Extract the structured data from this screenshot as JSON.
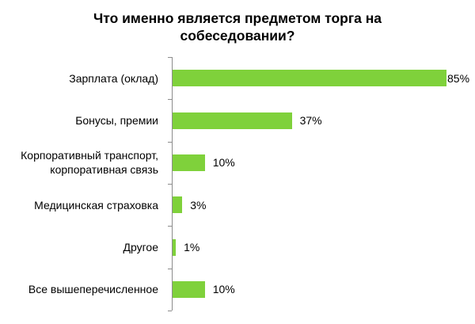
{
  "chart_data": {
    "type": "bar",
    "orientation": "horizontal",
    "title": "Что именно является предметом торга на собеседовании?",
    "title_lines": [
      "Что именно является предметом торга на",
      "собеседовании?"
    ],
    "categories": [
      "Зарплата (оклад)",
      "Бонусы, премии",
      "Корпоративный транспорт, корпоративная связь",
      "Медицинская страховка",
      "Другое",
      "Все вышеперечисленное"
    ],
    "category_lines": [
      [
        "Зарплата (оклад)"
      ],
      [
        "Бонусы, премии"
      ],
      [
        "Корпоративный транспорт,",
        "корпоративная связь"
      ],
      [
        "Медицинская страховка"
      ],
      [
        "Другое"
      ],
      [
        "Все вышеперечисленное"
      ]
    ],
    "values": [
      85,
      37,
      10,
      3,
      1,
      10
    ],
    "value_labels": [
      "85%",
      "37%",
      "10%",
      "3%",
      "1%",
      "10%"
    ],
    "xlabel": "",
    "ylabel": "",
    "xlim": [
      0,
      100
    ],
    "grid": false,
    "legend": null,
    "colors": {
      "bar": "#7fd13b",
      "axis": "#8c8c8c"
    }
  }
}
